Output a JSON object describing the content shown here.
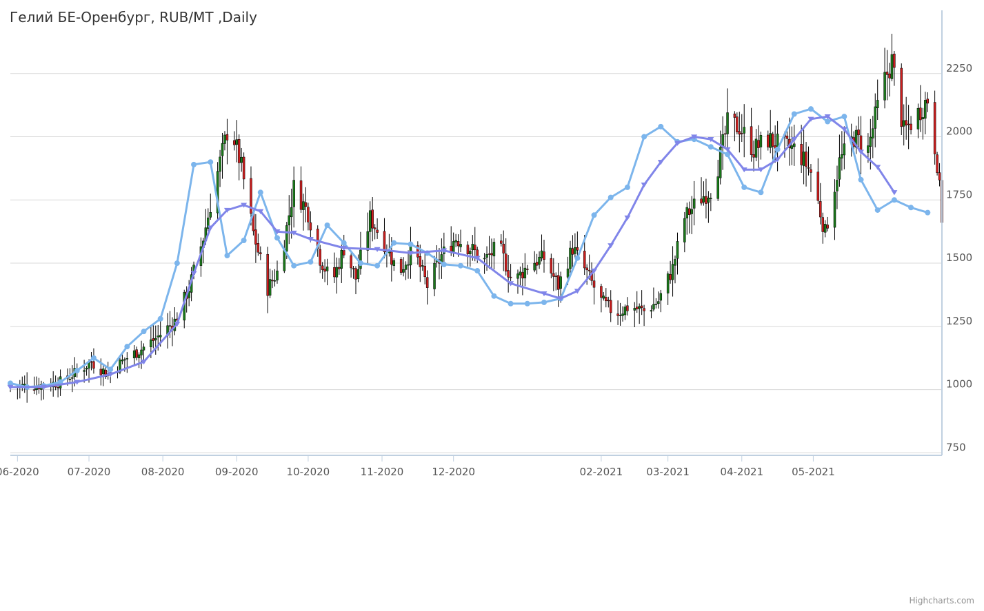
{
  "chart_data": {
    "type": "candlestick",
    "title": "Гелий БЕ-Оренбург, RUB/MT ,Daily",
    "credits": "Highcharts.com",
    "yaxis": {
      "position": "right",
      "ylim": [
        740,
        2500
      ],
      "ticks": [
        750,
        1000,
        1250,
        1500,
        1750,
        2000,
        2250
      ]
    },
    "xaxis": {
      "xlim": [
        "2020-05-29",
        "2021-06-24"
      ],
      "ticks": [
        {
          "label": "06-2020",
          "date": "2020-06-01"
        },
        {
          "label": "07-2020",
          "date": "2020-07-01"
        },
        {
          "label": "08-2020",
          "date": "2020-08-01"
        },
        {
          "label": "09-2020",
          "date": "2020-09-01"
        },
        {
          "label": "10-2020",
          "date": "2020-10-01"
        },
        {
          "label": "11-2020",
          "date": "2020-11-01"
        },
        {
          "label": "12-2020",
          "date": "2020-12-01"
        },
        {
          "label": "02-2021",
          "date": "2021-02-01"
        },
        {
          "label": "03-2021",
          "date": "2021-03-01"
        },
        {
          "label": "04-2021",
          "date": "2021-04-01"
        },
        {
          "label": "05-2021",
          "date": "2021-05-01"
        }
      ]
    },
    "grid": true,
    "colors": {
      "up": "#1a7a1a",
      "down": "#cc1f1f",
      "wick": "#000000",
      "grid": "#d8d8d8",
      "axis": "#c0d0e0",
      "fast_ma": "#7cb5ec",
      "slow_ma": "#8085e9"
    },
    "anchors": [
      [
        "2020-05-29",
        1010
      ],
      [
        "2020-06-05",
        1015
      ],
      [
        "2020-06-12",
        1018
      ],
      [
        "2020-06-19",
        1030
      ],
      [
        "2020-06-26",
        1070
      ],
      [
        "2020-07-02",
        1110
      ],
      [
        "2020-07-09",
        1060
      ],
      [
        "2020-07-16",
        1120
      ],
      [
        "2020-07-23",
        1160
      ],
      [
        "2020-07-30",
        1210
      ],
      [
        "2020-08-06",
        1270
      ],
      [
        "2020-08-12",
        1400
      ],
      [
        "2020-08-18",
        1600
      ],
      [
        "2020-08-24",
        1860
      ],
      [
        "2020-08-29",
        2060
      ],
      [
        "2020-09-03",
        1880
      ],
      [
        "2020-09-08",
        1620
      ],
      [
        "2020-09-14",
        1400
      ],
      [
        "2020-09-19",
        1480
      ],
      [
        "2020-09-25",
        1800
      ],
      [
        "2020-10-01",
        1700
      ],
      [
        "2020-10-06",
        1520
      ],
      [
        "2020-10-11",
        1420
      ],
      [
        "2020-10-16",
        1560
      ],
      [
        "2020-10-21",
        1440
      ],
      [
        "2020-10-27",
        1680
      ],
      [
        "2020-11-02",
        1580
      ],
      [
        "2020-11-08",
        1460
      ],
      [
        "2020-11-14",
        1560
      ],
      [
        "2020-11-20",
        1410
      ],
      [
        "2020-11-26",
        1530
      ],
      [
        "2020-12-02",
        1600
      ],
      [
        "2020-12-08",
        1560
      ],
      [
        "2020-12-14",
        1510
      ],
      [
        "2020-12-20",
        1570
      ],
      [
        "2020-12-26",
        1420
      ],
      [
        "2021-01-02",
        1500
      ],
      [
        "2021-01-08",
        1520
      ],
      [
        "2021-01-14",
        1410
      ],
      [
        "2021-01-20",
        1560
      ],
      [
        "2021-01-26",
        1460
      ],
      [
        "2021-02-01",
        1350
      ],
      [
        "2021-02-07",
        1300
      ],
      [
        "2021-02-13",
        1330
      ],
      [
        "2021-02-19",
        1310
      ],
      [
        "2021-02-25",
        1350
      ],
      [
        "2021-03-03",
        1480
      ],
      [
        "2021-03-08",
        1680
      ],
      [
        "2021-03-14",
        1750
      ],
      [
        "2021-03-20",
        1800
      ],
      [
        "2021-03-26",
        2050
      ],
      [
        "2021-03-31",
        2040
      ],
      [
        "2021-04-06",
        1950
      ],
      [
        "2021-04-12",
        1990
      ],
      [
        "2021-04-18",
        1960
      ],
      [
        "2021-04-24",
        1950
      ],
      [
        "2021-04-30",
        1860
      ],
      [
        "2021-05-06",
        1620
      ],
      [
        "2021-05-12",
        1900
      ],
      [
        "2021-05-18",
        2000
      ],
      [
        "2021-05-24",
        1950
      ],
      [
        "2021-05-30",
        2200
      ],
      [
        "2021-06-03",
        2300
      ],
      [
        "2021-06-08",
        2020
      ],
      [
        "2021-06-13",
        2080
      ],
      [
        "2021-06-18",
        2150
      ],
      [
        "2021-06-22",
        1900
      ],
      [
        "2021-06-24",
        1680
      ]
    ],
    "series": [
      {
        "values": [
          [
            "2020-05-29",
            1025
          ],
          [
            "2020-06-05",
            1010
          ],
          [
            "2020-06-12",
            1015
          ],
          [
            "2020-06-19",
            1030
          ],
          [
            "2020-06-26",
            1075
          ],
          [
            "2020-07-03",
            1125
          ],
          [
            "2020-07-10",
            1080
          ],
          [
            "2020-07-17",
            1170
          ],
          [
            "2020-07-24",
            1230
          ],
          [
            "2020-07-31",
            1280
          ],
          [
            "2020-08-07",
            1500
          ],
          [
            "2020-08-14",
            1890
          ],
          [
            "2020-08-21",
            1900
          ],
          [
            "2020-08-28",
            1530
          ],
          [
            "2020-09-04",
            1590
          ],
          [
            "2020-09-11",
            1780
          ],
          [
            "2020-09-18",
            1600
          ],
          [
            "2020-09-25",
            1490
          ],
          [
            "2020-10-02",
            1505
          ],
          [
            "2020-10-09",
            1650
          ],
          [
            "2020-10-16",
            1580
          ],
          [
            "2020-10-23",
            1500
          ],
          [
            "2020-10-30",
            1490
          ],
          [
            "2020-11-06",
            1580
          ],
          [
            "2020-11-13",
            1575
          ],
          [
            "2020-11-20",
            1540
          ],
          [
            "2020-11-27",
            1495
          ],
          [
            "2020-12-04",
            1490
          ],
          [
            "2020-12-11",
            1470
          ],
          [
            "2020-12-18",
            1370
          ],
          [
            "2020-12-25",
            1340
          ],
          [
            "2021-01-01",
            1340
          ],
          [
            "2021-01-08",
            1345
          ],
          [
            "2021-01-15",
            1360
          ],
          [
            "2021-01-22",
            1520
          ],
          [
            "2021-01-29",
            1690
          ],
          [
            "2021-02-05",
            1760
          ],
          [
            "2021-02-12",
            1800
          ],
          [
            "2021-02-19",
            2000
          ],
          [
            "2021-02-26",
            2040
          ],
          [
            "2021-03-05",
            1980
          ],
          [
            "2021-03-12",
            1990
          ],
          [
            "2021-03-19",
            1960
          ],
          [
            "2021-03-26",
            1930
          ],
          [
            "2021-04-02",
            1800
          ],
          [
            "2021-04-09",
            1780
          ],
          [
            "2021-04-16",
            1950
          ],
          [
            "2021-04-23",
            2090
          ],
          [
            "2021-04-30",
            2110
          ],
          [
            "2021-05-07",
            2060
          ],
          [
            "2021-05-14",
            2080
          ],
          [
            "2021-05-21",
            1830
          ],
          [
            "2021-05-28",
            1710
          ],
          [
            "2021-06-04",
            1750
          ],
          [
            "2021-06-11",
            1720
          ],
          [
            "2021-06-18",
            1700
          ]
        ]
      },
      {
        "values": [
          [
            "2020-05-29",
            1010
          ],
          [
            "2020-06-12",
            1010
          ],
          [
            "2020-06-26",
            1030
          ],
          [
            "2020-07-10",
            1060
          ],
          [
            "2020-07-24",
            1110
          ],
          [
            "2020-08-07",
            1260
          ],
          [
            "2020-08-14",
            1460
          ],
          [
            "2020-08-21",
            1640
          ],
          [
            "2020-08-28",
            1710
          ],
          [
            "2020-09-04",
            1730
          ],
          [
            "2020-09-11",
            1705
          ],
          [
            "2020-09-18",
            1625
          ],
          [
            "2020-09-25",
            1620
          ],
          [
            "2020-10-02",
            1595
          ],
          [
            "2020-10-16",
            1560
          ],
          [
            "2020-10-30",
            1555
          ],
          [
            "2020-11-13",
            1540
          ],
          [
            "2020-11-27",
            1550
          ],
          [
            "2020-12-11",
            1520
          ],
          [
            "2020-12-25",
            1420
          ],
          [
            "2021-01-08",
            1380
          ],
          [
            "2021-01-15",
            1360
          ],
          [
            "2021-01-22",
            1390
          ],
          [
            "2021-01-29",
            1470
          ],
          [
            "2021-02-05",
            1570
          ],
          [
            "2021-02-12",
            1680
          ],
          [
            "2021-02-19",
            1810
          ],
          [
            "2021-02-26",
            1900
          ],
          [
            "2021-03-05",
            1975
          ],
          [
            "2021-03-12",
            2000
          ],
          [
            "2021-03-19",
            1990
          ],
          [
            "2021-03-26",
            1950
          ],
          [
            "2021-04-02",
            1870
          ],
          [
            "2021-04-09",
            1870
          ],
          [
            "2021-04-16",
            1910
          ],
          [
            "2021-04-23",
            1990
          ],
          [
            "2021-04-30",
            2070
          ],
          [
            "2021-05-07",
            2080
          ],
          [
            "2021-05-14",
            2030
          ],
          [
            "2021-05-21",
            1940
          ],
          [
            "2021-05-28",
            1880
          ],
          [
            "2021-06-04",
            1780
          ]
        ]
      }
    ]
  }
}
